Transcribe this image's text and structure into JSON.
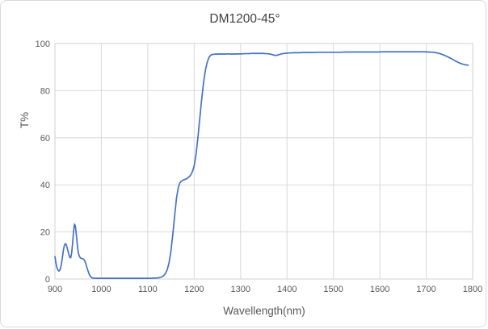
{
  "chart": {
    "title": "DM1200-45°",
    "x_label": "Wavellength(nm)",
    "y_label": "T%"
  },
  "colors": {
    "line": "#4472C4",
    "grid": "#d9d9d9",
    "text": "#595959",
    "title_text": "#404040",
    "background": "#ffffff"
  },
  "chart_data": {
    "type": "line",
    "title": "DM1200-45°",
    "xlabel": "Wavellength(nm)",
    "ylabel": "T%",
    "xlim": [
      900,
      1800
    ],
    "ylim": [
      0,
      100
    ],
    "x_ticks": [
      900,
      1000,
      1100,
      1200,
      1300,
      1400,
      1500,
      1600,
      1700,
      1800
    ],
    "y_ticks": [
      0,
      20,
      40,
      60,
      80,
      100
    ],
    "grid": true,
    "legend": "none",
    "line_color": "#4472C4",
    "series": [
      {
        "name": "T%",
        "x": [
          900,
          902,
          904,
          906,
          908,
          910,
          912,
          914,
          916,
          918,
          920,
          922,
          924,
          926,
          928,
          930,
          932,
          934,
          936,
          938,
          940,
          942,
          944,
          946,
          948,
          950,
          952,
          954,
          956,
          958,
          960,
          962,
          964,
          966,
          968,
          970,
          972,
          974,
          976,
          978,
          980,
          985,
          990,
          1000,
          1010,
          1020,
          1030,
          1040,
          1050,
          1060,
          1070,
          1080,
          1090,
          1100,
          1110,
          1120,
          1126,
          1130,
          1134,
          1138,
          1142,
          1146,
          1150,
          1154,
          1158,
          1162,
          1166,
          1169,
          1172,
          1176,
          1180,
          1184,
          1188,
          1192,
          1196,
          1200,
          1204,
          1208,
          1212,
          1216,
          1220,
          1224,
          1228,
          1232,
          1236,
          1240,
          1246,
          1252,
          1258,
          1264,
          1270,
          1276,
          1282,
          1288,
          1294,
          1300,
          1308,
          1316,
          1324,
          1332,
          1340,
          1348,
          1356,
          1362,
          1368,
          1373,
          1378,
          1383,
          1390,
          1398,
          1406,
          1416,
          1426,
          1436,
          1446,
          1456,
          1466,
          1476,
          1486,
          1496,
          1506,
          1516,
          1526,
          1536,
          1546,
          1556,
          1566,
          1576,
          1586,
          1596,
          1606,
          1616,
          1626,
          1636,
          1646,
          1656,
          1666,
          1676,
          1686,
          1696,
          1706,
          1714,
          1722,
          1730,
          1738,
          1746,
          1754,
          1762,
          1770,
          1778,
          1784,
          1790
        ],
        "y": [
          9.5,
          7,
          5,
          4,
          3.4,
          3.6,
          4.5,
          6.5,
          9,
          12,
          14,
          15,
          14.8,
          13.5,
          12,
          10.5,
          9.2,
          9,
          11,
          15,
          20,
          23.3,
          22.5,
          19,
          15,
          11.5,
          10,
          9.2,
          8.8,
          8.7,
          8.6,
          8.4,
          7.8,
          6.8,
          5.5,
          4.2,
          3,
          2,
          1.3,
          0.8,
          0.5,
          0.35,
          0.3,
          0.3,
          0.3,
          0.3,
          0.3,
          0.3,
          0.3,
          0.3,
          0.3,
          0.3,
          0.3,
          0.3,
          0.35,
          0.45,
          0.6,
          0.9,
          1.4,
          2.3,
          4,
          7,
          12,
          19,
          27,
          34.5,
          39,
          40.8,
          41.5,
          42,
          42.3,
          42.6,
          43.2,
          44,
          45.5,
          48,
          53,
          60,
          68,
          76,
          83,
          88.5,
          92,
          94.2,
          95.1,
          95.4,
          95.5,
          95.5,
          95.6,
          95.5,
          95.6,
          95.6,
          95.5,
          95.6,
          95.6,
          95.6,
          95.7,
          95.7,
          95.8,
          95.8,
          95.8,
          95.8,
          95.7,
          95.6,
          95.3,
          95,
          95,
          95.3,
          95.7,
          95.9,
          96,
          96.1,
          96.1,
          96.2,
          96.2,
          96.2,
          96.3,
          96.3,
          96.3,
          96.3,
          96.3,
          96.3,
          96.4,
          96.4,
          96.4,
          96.4,
          96.4,
          96.4,
          96.4,
          96.4,
          96.5,
          96.5,
          96.5,
          96.5,
          96.5,
          96.5,
          96.5,
          96.5,
          96.5,
          96.5,
          96.4,
          96.3,
          96.1,
          95.7,
          95.1,
          94.4,
          93.6,
          92.7,
          91.9,
          91.3,
          91,
          90.8
        ]
      }
    ]
  }
}
